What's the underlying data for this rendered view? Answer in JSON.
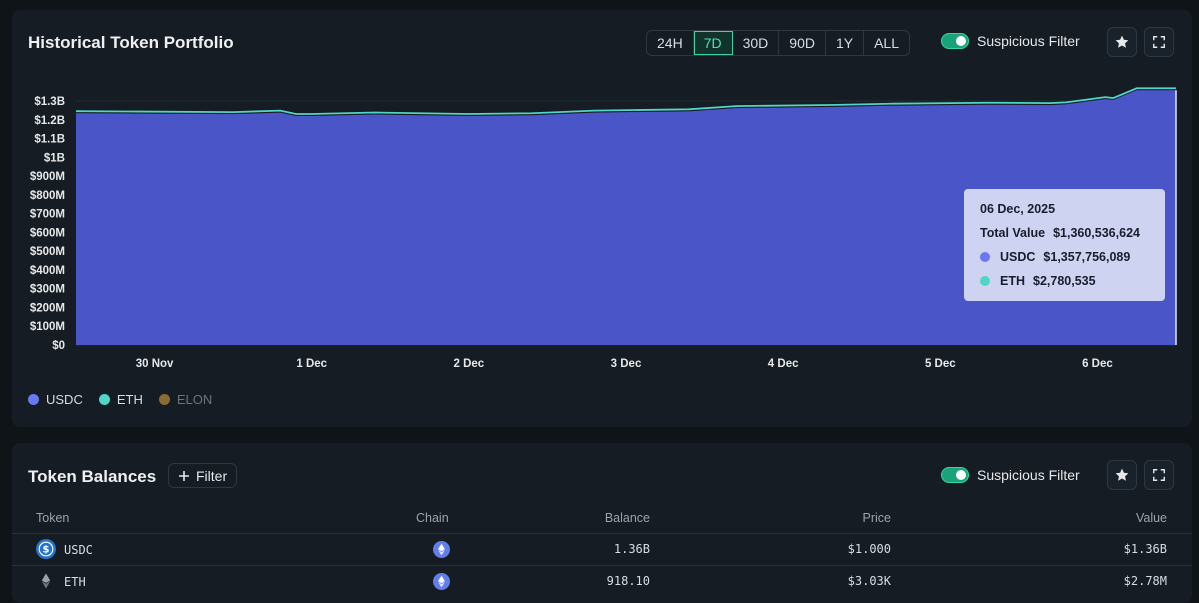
{
  "chart_panel": {
    "title": "Historical Token Portfolio",
    "ranges": [
      "24H",
      "7D",
      "30D",
      "90D",
      "1Y",
      "ALL"
    ],
    "active_range": "7D",
    "suspicious_filter_label": "Suspicious Filter",
    "favorite_icon": "star-icon",
    "expand_icon": "fullscreen-icon"
  },
  "tooltip": {
    "date": "06 Dec, 2025",
    "total_label": "Total Value",
    "total_value": "$1,360,536,624",
    "items": [
      {
        "label": "USDC",
        "value": "$1,357,756,089",
        "color": "#6b78f2"
      },
      {
        "label": "ETH",
        "value": "$2,780,535",
        "color": "#4fd6c4"
      }
    ]
  },
  "legend": [
    {
      "label": "USDC",
      "color": "#6b78f2",
      "muted": false
    },
    {
      "label": "ETH",
      "color": "#4fd6c4",
      "muted": false
    },
    {
      "label": "ELON",
      "color": "#8a6d35",
      "muted": true
    }
  ],
  "chart_data": {
    "type": "area",
    "stacked": true,
    "ylim": [
      0,
      1.3
    ],
    "y_unit": "B",
    "y_ticks": [
      "$0",
      "$100M",
      "$200M",
      "$300M",
      "$400M",
      "$500M",
      "$600M",
      "$700M",
      "$800M",
      "$900M",
      "$1B",
      "$1.1B",
      "$1.2B",
      "$1.3B"
    ],
    "x_ticks": [
      "30 Nov",
      "1 Dec",
      "2 Dec",
      "3 Dec",
      "4 Dec",
      "5 Dec",
      "6 Dec"
    ],
    "x_tick_positions_days": [
      0.5,
      1.5,
      2.5,
      3.5,
      4.5,
      5.5,
      6.5
    ],
    "x_range_days": [
      0,
      7
    ],
    "series": [
      {
        "name": "USDC",
        "color": "#4a55c8",
        "x": [
          0,
          0.4,
          1.0,
          1.3,
          1.4,
          1.5,
          1.9,
          2.5,
          2.9,
          3.3,
          3.9,
          4.2,
          4.8,
          5.2,
          5.8,
          6.2,
          6.3,
          6.55,
          6.6,
          6.75,
          7.0
        ],
        "y": [
          1.235,
          1.233,
          1.23,
          1.238,
          1.22,
          1.22,
          1.228,
          1.22,
          1.224,
          1.238,
          1.245,
          1.262,
          1.268,
          1.275,
          1.28,
          1.278,
          1.282,
          1.31,
          1.305,
          1.357,
          1.357
        ]
      },
      {
        "name": "ETH",
        "color": "#4fd6c4",
        "x": [
          0,
          7.0
        ],
        "y": [
          0.0028,
          0.0028
        ]
      }
    ]
  },
  "balances": {
    "title": "Token Balances",
    "filter_label": "Filter",
    "suspicious_filter_label": "Suspicious Filter",
    "columns": [
      "Token",
      "Chain",
      "Balance",
      "Price",
      "Value"
    ],
    "rows": [
      {
        "token": "USDC",
        "icon": "usdc-coin-icon",
        "chain_icon": "ethereum-icon",
        "balance": "1.36B",
        "price": "$1.000",
        "value": "$1.36B"
      },
      {
        "token": "ETH",
        "icon": "eth-coin-icon",
        "chain_icon": "ethereum-icon",
        "balance": "918.10",
        "price": "$3.03K",
        "value": "$2.78M"
      }
    ]
  }
}
